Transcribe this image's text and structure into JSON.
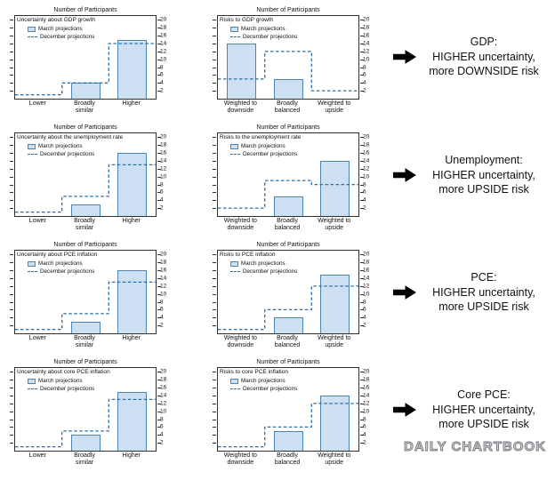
{
  "page": {
    "brand": "DAILY CHARTBOOK"
  },
  "colors": {
    "bar_fill": "#cde0f2",
    "bar_border": "#4d85b0",
    "dashed_line": "#2e6da4",
    "frame": "#2f2f2f",
    "text": "#111111",
    "arrow_black": "#000000",
    "brand_gray": "#85888c"
  },
  "legend": {
    "march_label": "March projections",
    "december_label": "December projections"
  },
  "axis": {
    "title": "Number of Participants",
    "yticks": [
      2,
      4,
      6,
      8,
      10,
      12,
      14,
      16,
      18,
      20
    ],
    "ymax": 21
  },
  "chart_data": [
    {
      "type": "bar",
      "title": "Uncertainty about GDP growth",
      "categories": [
        "Lower",
        "Broadly\nsimilar",
        "Higher"
      ],
      "series": [
        {
          "name": "March projections",
          "style": "bars",
          "values": [
            0,
            4,
            15
          ]
        },
        {
          "name": "December projections",
          "style": "dashed-step",
          "values": [
            1,
            4,
            14
          ]
        }
      ],
      "ylabel": "Number of Participants",
      "ylim": [
        0,
        21
      ]
    },
    {
      "type": "bar",
      "title": "Risks to GDP growth",
      "categories": [
        "Weighted to\ndownside",
        "Broadly\nbalanced",
        "Weighted to\nupside"
      ],
      "series": [
        {
          "name": "March projections",
          "style": "bars",
          "values": [
            14,
            5,
            0
          ]
        },
        {
          "name": "December projections",
          "style": "dashed-step",
          "values": [
            5,
            12,
            2
          ]
        }
      ],
      "ylabel": "Number of Participants",
      "ylim": [
        0,
        21
      ]
    },
    {
      "type": "bar",
      "title": "Uncertainty about the unemployment rate",
      "categories": [
        "Lower",
        "Broadly\nsimilar",
        "Higher"
      ],
      "series": [
        {
          "name": "March projections",
          "style": "bars",
          "values": [
            0,
            3,
            16
          ]
        },
        {
          "name": "December projections",
          "style": "dashed-step",
          "values": [
            1,
            5,
            13
          ]
        }
      ],
      "ylabel": "Number of Participants",
      "ylim": [
        0,
        21
      ]
    },
    {
      "type": "bar",
      "title": "Risks to the unemployment rate",
      "categories": [
        "Weighted to\ndownside",
        "Broadly\nbalanced",
        "Weighted to\nupside"
      ],
      "series": [
        {
          "name": "March projections",
          "style": "bars",
          "values": [
            0,
            5,
            14
          ]
        },
        {
          "name": "December projections",
          "style": "dashed-step",
          "values": [
            2,
            9,
            8
          ]
        }
      ],
      "ylabel": "Number of Participants",
      "ylim": [
        0,
        21
      ]
    },
    {
      "type": "bar",
      "title": "Uncertainty about PCE inflation",
      "categories": [
        "Lower",
        "Broadly\nsimilar",
        "Higher"
      ],
      "series": [
        {
          "name": "March projections",
          "style": "bars",
          "values": [
            0,
            3,
            16
          ]
        },
        {
          "name": "December projections",
          "style": "dashed-step",
          "values": [
            1,
            5,
            13
          ]
        }
      ],
      "ylabel": "Number of Participants",
      "ylim": [
        0,
        21
      ]
    },
    {
      "type": "bar",
      "title": "Risks to PCE inflation",
      "categories": [
        "Weighted to\ndownside",
        "Broadly\nbalanced",
        "Weighted to\nupside"
      ],
      "series": [
        {
          "name": "March projections",
          "style": "bars",
          "values": [
            0,
            4,
            15
          ]
        },
        {
          "name": "December projections",
          "style": "dashed-step",
          "values": [
            1,
            6,
            12
          ]
        }
      ],
      "ylabel": "Number of Participants",
      "ylim": [
        0,
        21
      ]
    },
    {
      "type": "bar",
      "title": "Uncertainty about core PCE inflation",
      "categories": [
        "Lower",
        "Broadly\nsimilar",
        "Higher"
      ],
      "series": [
        {
          "name": "March projections",
          "style": "bars",
          "values": [
            0,
            4,
            15
          ]
        },
        {
          "name": "December projections",
          "style": "dashed-step",
          "values": [
            1,
            5,
            13
          ]
        }
      ],
      "ylabel": "Number of Participants",
      "ylim": [
        0,
        21
      ]
    },
    {
      "type": "bar",
      "title": "Risks to core PCE inflation",
      "categories": [
        "Weighted to\ndownside",
        "Broadly\nbalanced",
        "Weighted to\nupside"
      ],
      "series": [
        {
          "name": "March projections",
          "style": "bars",
          "values": [
            0,
            5,
            14
          ]
        },
        {
          "name": "December projections",
          "style": "dashed-step",
          "values": [
            1,
            6,
            12
          ]
        }
      ],
      "ylabel": "Number of Participants",
      "ylim": [
        0,
        21
      ]
    }
  ],
  "annotations": [
    {
      "text": "GDP:\nHIGHER uncertainty,\nmore DOWNSIDE risk"
    },
    {
      "text": "Unemployment:\nHIGHER uncertainty,\nmore UPSIDE risk"
    },
    {
      "text": "PCE:\nHIGHER uncertainty,\nmore UPSIDE risk"
    },
    {
      "text": "Core PCE:\nHIGHER uncertainty,\nmore UPSIDE risk"
    }
  ]
}
